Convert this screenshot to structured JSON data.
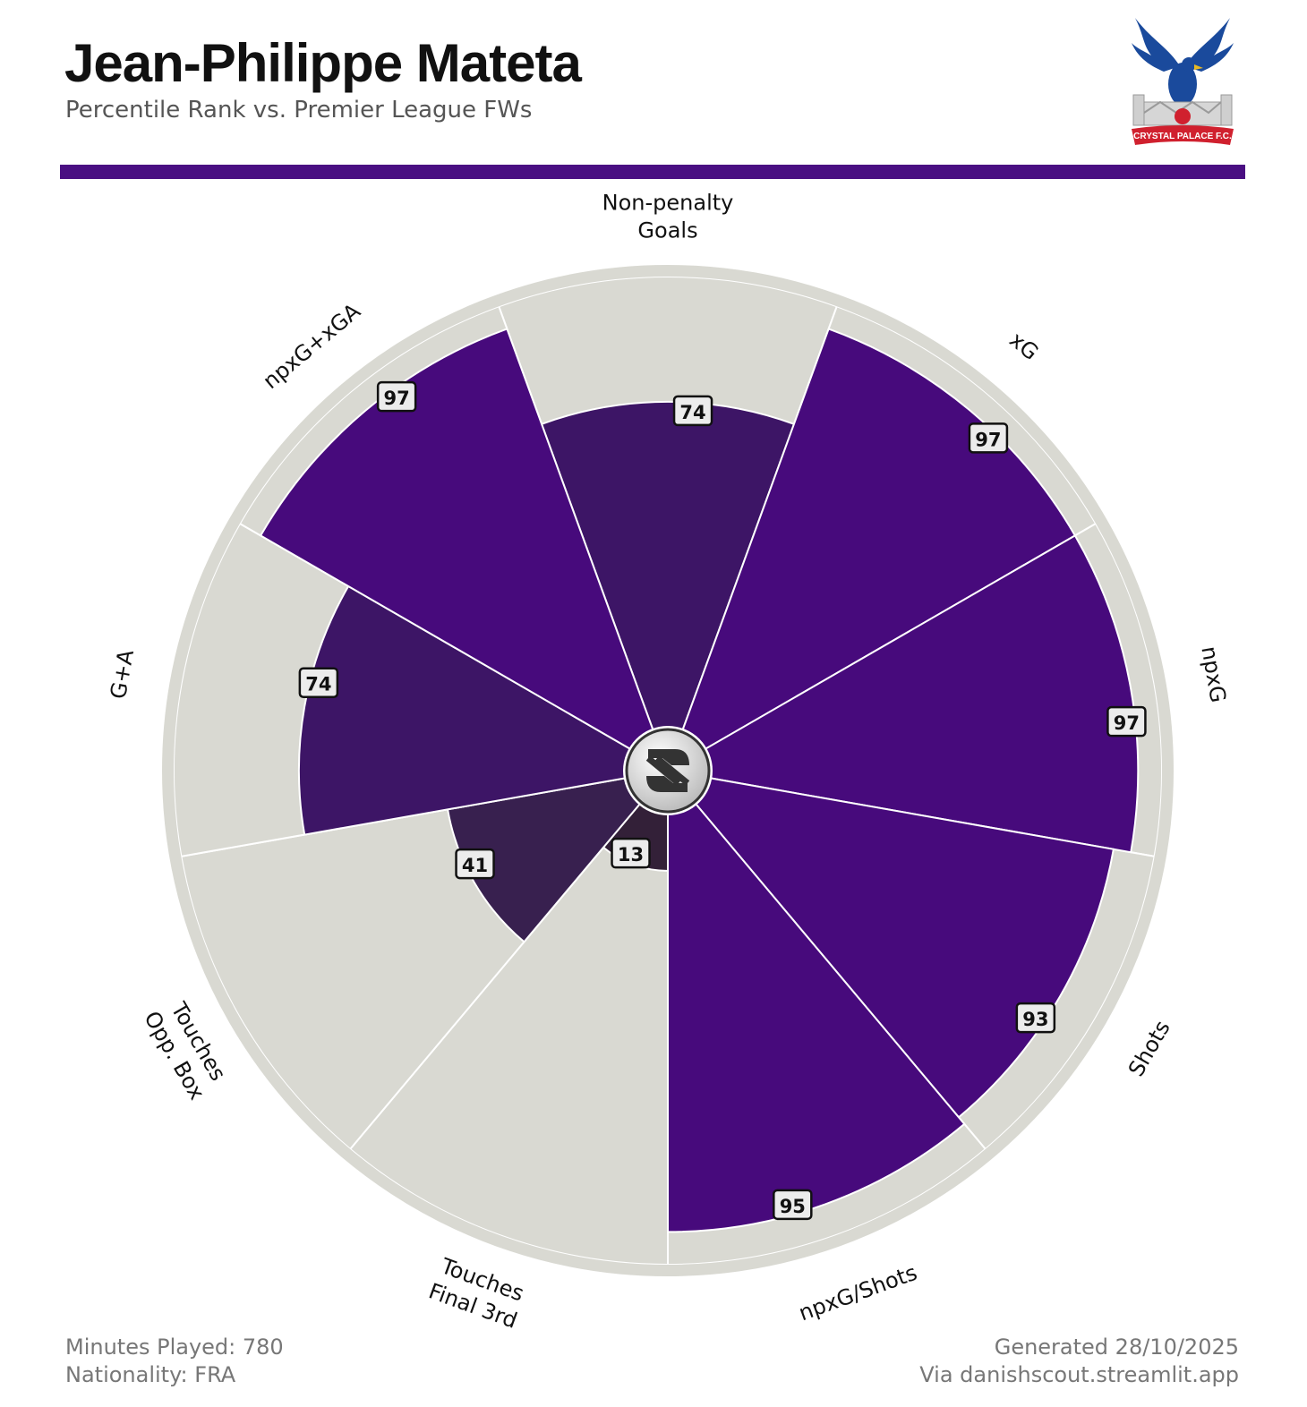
{
  "header": {
    "title": "Jean-Philippe Mateta",
    "subtitle": "Percentile Rank vs. Premier League FWs"
  },
  "crest": {
    "text": "CRYSTAL PALACE F.C."
  },
  "footer": {
    "minutes": "Minutes Played: 780",
    "nationality": "Nationality: FRA",
    "generated": "Generated 28/10/2025",
    "via": "Via danishscout.streamlit.app"
  },
  "colors": {
    "accent": "#4a0f82",
    "background_wedge": "#d9d9d2",
    "edge": "#ffffff"
  },
  "chart_data": {
    "type": "polar-bar",
    "title": "Jean-Philippe Mateta",
    "rlim": [
      0,
      100
    ],
    "categories": [
      [
        "Non-penalty",
        "Goals"
      ],
      [
        "xG"
      ],
      [
        "npxG"
      ],
      [
        "Shots"
      ],
      [
        "npxG/Shots"
      ],
      [
        "Touches",
        "Final 3rd"
      ],
      [
        "Touches",
        "Opp. Box"
      ],
      [
        "G+A"
      ],
      [
        "npxG+xGA"
      ]
    ],
    "values": [
      74,
      97,
      97,
      93,
      95,
      13,
      41,
      74,
      97
    ],
    "bar_colors": [
      "#3d1566",
      "#470a7c",
      "#470a7c",
      "#470a7c",
      "#470a7c",
      "#332038",
      "#38204f",
      "#3d1566",
      "#470a7c"
    ]
  }
}
